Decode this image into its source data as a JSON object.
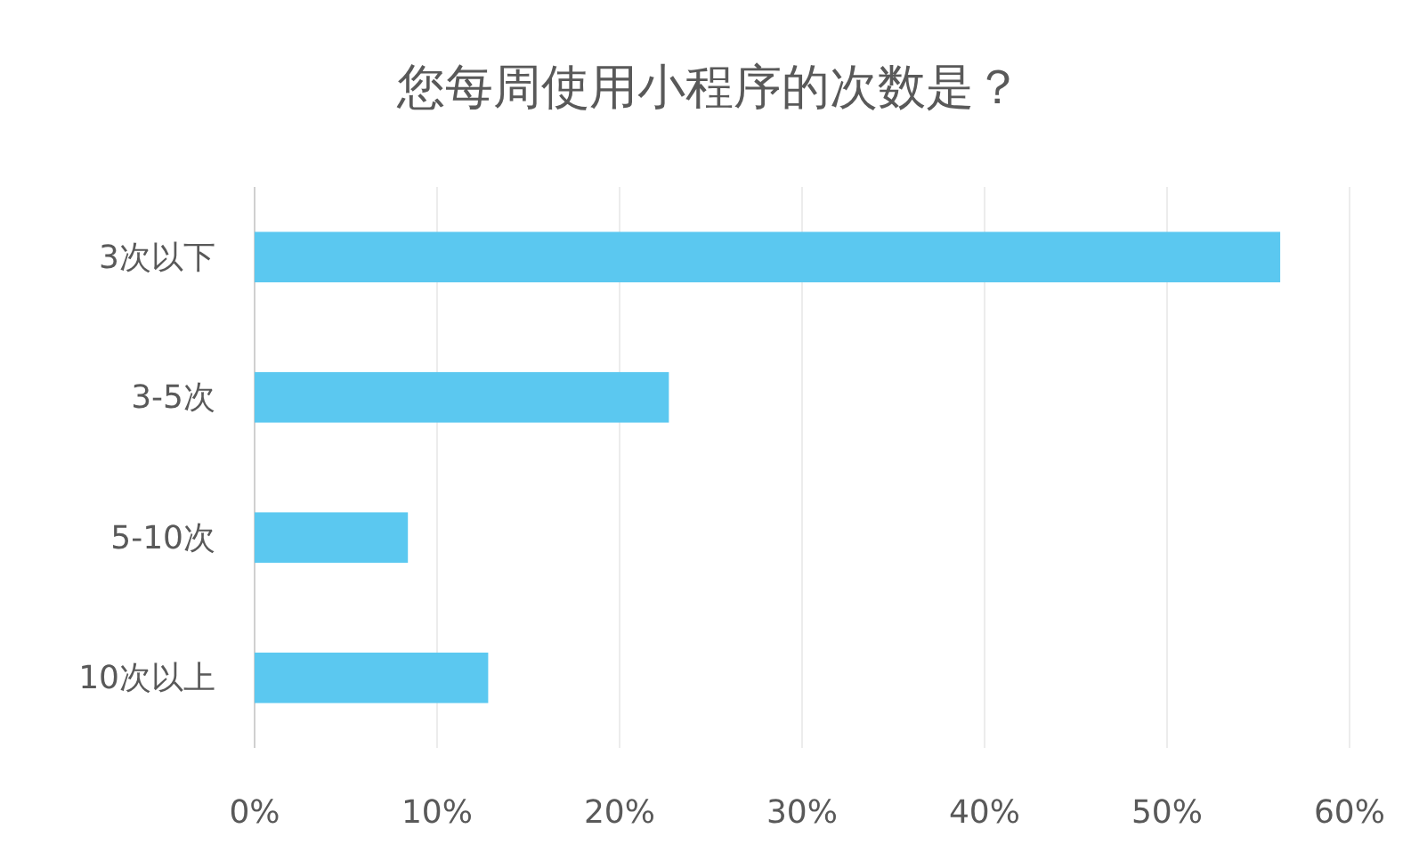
{
  "chart_data": {
    "type": "bar",
    "orientation": "horizontal",
    "title": "您每周使用小程序的次数是？",
    "categories": [
      "3次以下",
      "3-5次",
      "5-10次",
      "10次以上"
    ],
    "values": [
      56.2,
      22.7,
      8.4,
      12.8
    ],
    "color": "#5bc8f0",
    "xlim": [
      0,
      60
    ],
    "xticks": [
      {
        "value": 0,
        "label": "0%"
      },
      {
        "value": 10,
        "label": "10%"
      },
      {
        "value": 20,
        "label": "20%"
      },
      {
        "value": 30,
        "label": "30%"
      },
      {
        "value": 40,
        "label": "40%"
      },
      {
        "value": 50,
        "label": "50%"
      },
      {
        "value": 60,
        "label": "60%"
      }
    ],
    "grid": "x"
  }
}
